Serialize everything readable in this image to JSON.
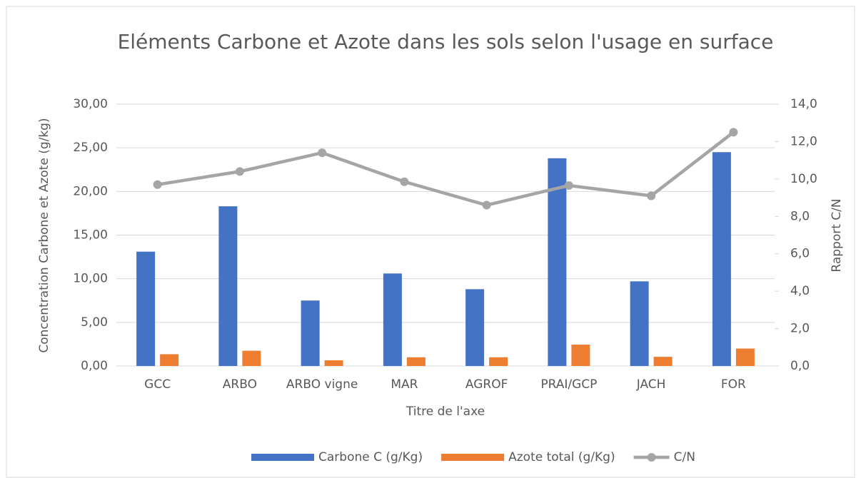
{
  "chart_data": {
    "type": "bar",
    "title": "Eléments Carbone et Azote dans les sols selon l'usage en surface",
    "x_label": "Titre de l'axe",
    "y_label": "Concentration Carbone et Azote (g/kg)",
    "y2_label": "Rapport C/N",
    "categories": [
      "GCC",
      "ARBO",
      "ARBO vigne",
      "MAR",
      "AGROF",
      "PRAI/GCP",
      "JACH",
      "FOR"
    ],
    "series": [
      {
        "name": "Carbone C (g/Kg)",
        "type": "bar",
        "color": "#4472c4",
        "values": [
          13.1,
          18.3,
          7.5,
          10.6,
          8.8,
          23.8,
          9.7,
          24.5
        ]
      },
      {
        "name": "Azote total (g/Kg)",
        "type": "bar",
        "color": "#ed7d31",
        "values": [
          1.35,
          1.75,
          0.65,
          1.0,
          1.0,
          2.45,
          1.05,
          2.0
        ]
      },
      {
        "name": "C/N",
        "type": "line",
        "axis": "y2",
        "color": "#a5a5a5",
        "values": [
          9.7,
          10.4,
          11.4,
          9.85,
          8.6,
          9.65,
          9.1,
          12.5
        ]
      }
    ],
    "ylim": [
      0,
      30
    ],
    "yticks": [
      {
        "value": 0,
        "label": "0,00"
      },
      {
        "value": 5,
        "label": "5,00"
      },
      {
        "value": 10,
        "label": "10,00"
      },
      {
        "value": 15,
        "label": "15,00"
      },
      {
        "value": 20,
        "label": "20,00"
      },
      {
        "value": 25,
        "label": "25,00"
      },
      {
        "value": 30,
        "label": "30,00"
      }
    ],
    "y2lim": [
      0,
      14
    ],
    "y2ticks": [
      {
        "value": 0,
        "label": "0,0"
      },
      {
        "value": 2,
        "label": "2,0"
      },
      {
        "value": 4,
        "label": "4,0"
      },
      {
        "value": 6,
        "label": "6,0"
      },
      {
        "value": 8,
        "label": "8,0"
      },
      {
        "value": 10,
        "label": "10,0"
      },
      {
        "value": 12,
        "label": "12,0"
      },
      {
        "value": 14,
        "label": "14,0"
      }
    ],
    "grid": true,
    "legend": "bottom"
  }
}
